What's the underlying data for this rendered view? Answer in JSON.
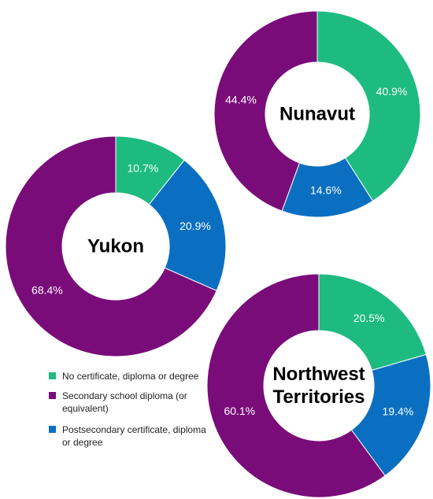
{
  "chart_data": [
    {
      "type": "donut",
      "title": "Nunavut",
      "categories": [
        "No certificate, diploma  or degree",
        "Postsecondary certificate, diploma or degree",
        "Secondary school diploma (or equivalent)"
      ],
      "values": [
        40.9,
        14.6,
        44.4
      ],
      "value_labels": [
        "40.9%",
        "14.6%",
        "44.4%"
      ],
      "colors": [
        "#1dbb7f",
        "#0b6fc1",
        "#7a0c7a"
      ]
    },
    {
      "type": "donut",
      "title": "Yukon",
      "categories": [
        "No certificate, diploma  or degree",
        "Postsecondary certificate, diploma or degree",
        "Secondary school diploma (or equivalent)"
      ],
      "values": [
        10.7,
        20.9,
        68.4
      ],
      "value_labels": [
        "10.7%",
        "20.9%",
        "68.4%"
      ],
      "colors": [
        "#1dbb7f",
        "#0b6fc1",
        "#7a0c7a"
      ]
    },
    {
      "type": "donut",
      "title": "Northwest Territories",
      "categories": [
        "No certificate, diploma  or degree",
        "Postsecondary certificate, diploma or degree",
        "Secondary school diploma (or equivalent)"
      ],
      "values": [
        20.5,
        19.4,
        60.1
      ],
      "value_labels": [
        "20.5%",
        "19.4%",
        "60.1%"
      ],
      "colors": [
        "#1dbb7f",
        "#0b6fc1",
        "#7a0c7a"
      ]
    }
  ]
}
